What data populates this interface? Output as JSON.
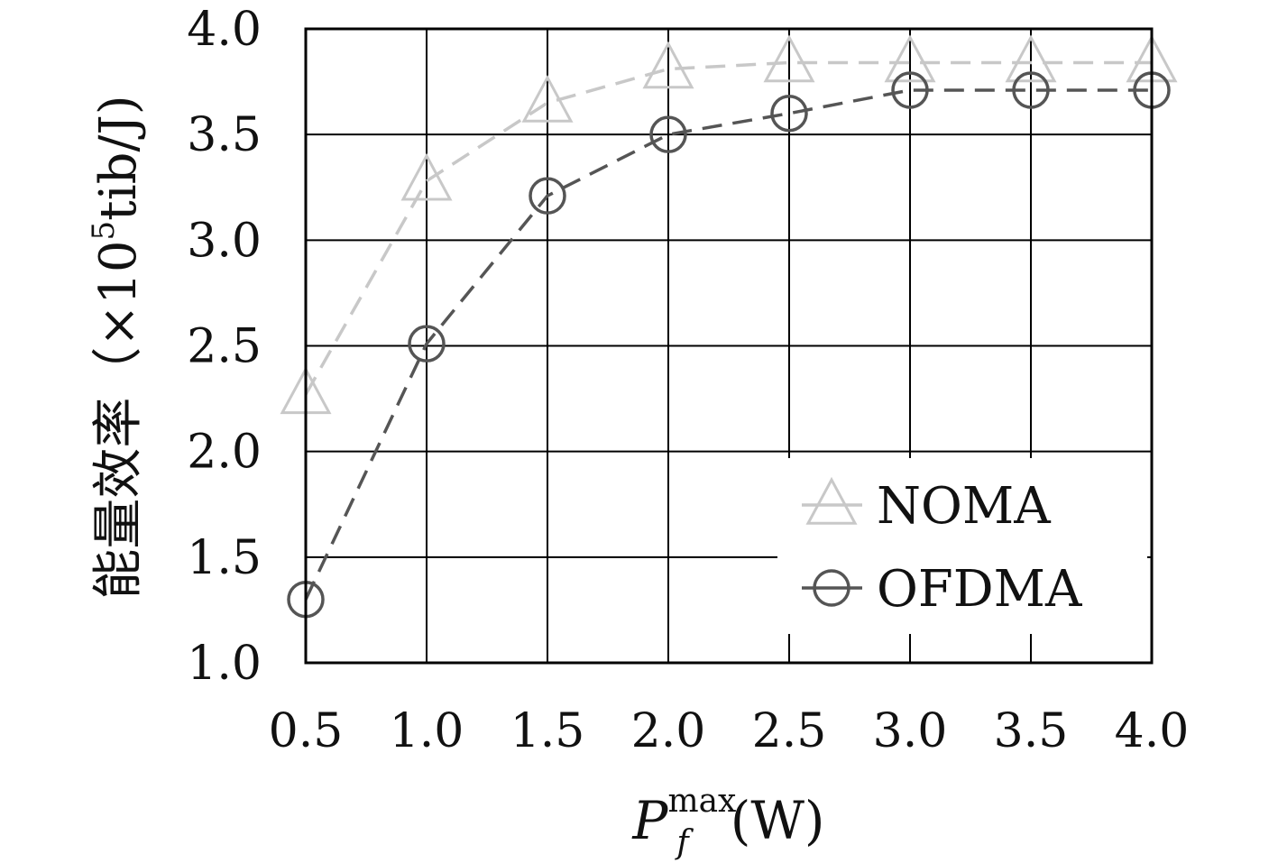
{
  "chart_data": {
    "type": "line",
    "title": "",
    "xlabel": {
      "main": "P",
      "subscript": "f",
      "superscript": "max",
      "unit": "(W)"
    },
    "ylabel": {
      "prefix": "能量效率（×10",
      "exponent": "5",
      "suffix": "tib/J)"
    },
    "x": [
      0.5,
      1.0,
      1.5,
      2.0,
      2.5,
      3.0,
      3.5,
      4.0
    ],
    "xlim": [
      0.5,
      4.0
    ],
    "ylim": [
      1.0,
      4.0
    ],
    "xticks": [
      "0.5",
      "1.0",
      "1.5",
      "2.0",
      "2.5",
      "3.0",
      "3.5",
      "4.0"
    ],
    "yticks": [
      "1.0",
      "1.5",
      "2.0",
      "2.5",
      "3.0",
      "3.5",
      "4.0"
    ],
    "grid": true,
    "legend_position": "bottom-right",
    "series": [
      {
        "name": "NOMA",
        "marker": "triangle",
        "color": "#c8c8c8",
        "line_style": "dashed",
        "values": [
          2.27,
          3.28,
          3.65,
          3.81,
          3.84,
          3.84,
          3.84,
          3.84
        ]
      },
      {
        "name": "OFDMA",
        "marker": "circle",
        "color": "#555555",
        "line_style": "dashed",
        "values": [
          1.3,
          2.51,
          3.21,
          3.5,
          3.6,
          3.71,
          3.71,
          3.71
        ]
      }
    ]
  }
}
